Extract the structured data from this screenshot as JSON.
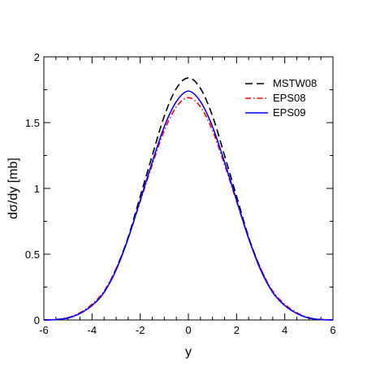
{
  "chart_data": {
    "type": "line",
    "xlabel": "y",
    "ylabel": "dσ/dy [mb]",
    "xlim": [
      -6,
      6
    ],
    "ylim": [
      0,
      2
    ],
    "xticks": [
      -6,
      -4,
      -2,
      0,
      2,
      4,
      6
    ],
    "yticks": [
      0,
      0.5,
      1,
      1.5,
      2
    ],
    "ytick_labels": [
      "0",
      "0.5",
      "1",
      "1.5",
      "2"
    ],
    "grid": false,
    "legend_position": "top-right",
    "series": [
      {
        "name": "MSTW08",
        "color": "#000000",
        "dash": "dashed",
        "x": [
          -6,
          -5.5,
          -5,
          -4.5,
          -4,
          -3.5,
          -3,
          -2.5,
          -2,
          -1.5,
          -1,
          -0.5,
          0,
          0.5,
          1,
          1.5,
          2,
          2.5,
          3,
          3.5,
          4,
          4.5,
          5,
          5.5,
          6
        ],
        "y": [
          0,
          0.003,
          0.015,
          0.05,
          0.11,
          0.21,
          0.39,
          0.63,
          0.94,
          1.25,
          1.55,
          1.76,
          1.84,
          1.76,
          1.55,
          1.25,
          0.94,
          0.63,
          0.39,
          0.21,
          0.11,
          0.05,
          0.015,
          0.003,
          0
        ]
      },
      {
        "name": "EPS08",
        "color": "#ff0000",
        "dash": "dash-dot",
        "x": [
          -6,
          -5.5,
          -5,
          -4.5,
          -4,
          -3.5,
          -3,
          -2.5,
          -2,
          -1.5,
          -1,
          -0.5,
          0,
          0.5,
          1,
          1.5,
          2,
          2.5,
          3,
          3.5,
          4,
          4.5,
          5,
          5.5,
          6
        ],
        "y": [
          0,
          0.004,
          0.018,
          0.055,
          0.12,
          0.22,
          0.39,
          0.62,
          0.9,
          1.18,
          1.44,
          1.62,
          1.69,
          1.62,
          1.44,
          1.18,
          0.9,
          0.62,
          0.39,
          0.22,
          0.12,
          0.055,
          0.018,
          0.004,
          0
        ]
      },
      {
        "name": "EPS09",
        "color": "#0000ff",
        "dash": "solid",
        "x": [
          -6,
          -5.5,
          -5,
          -4.5,
          -4,
          -3.5,
          -3,
          -2.5,
          -2,
          -1.5,
          -1,
          -0.5,
          0,
          0.5,
          1,
          1.5,
          2,
          2.5,
          3,
          3.5,
          4,
          4.5,
          5,
          5.5,
          6
        ],
        "y": [
          0,
          0.003,
          0.015,
          0.05,
          0.11,
          0.21,
          0.38,
          0.62,
          0.91,
          1.2,
          1.47,
          1.66,
          1.74,
          1.66,
          1.47,
          1.2,
          0.91,
          0.62,
          0.38,
          0.21,
          0.11,
          0.05,
          0.015,
          0.003,
          0
        ]
      }
    ]
  }
}
